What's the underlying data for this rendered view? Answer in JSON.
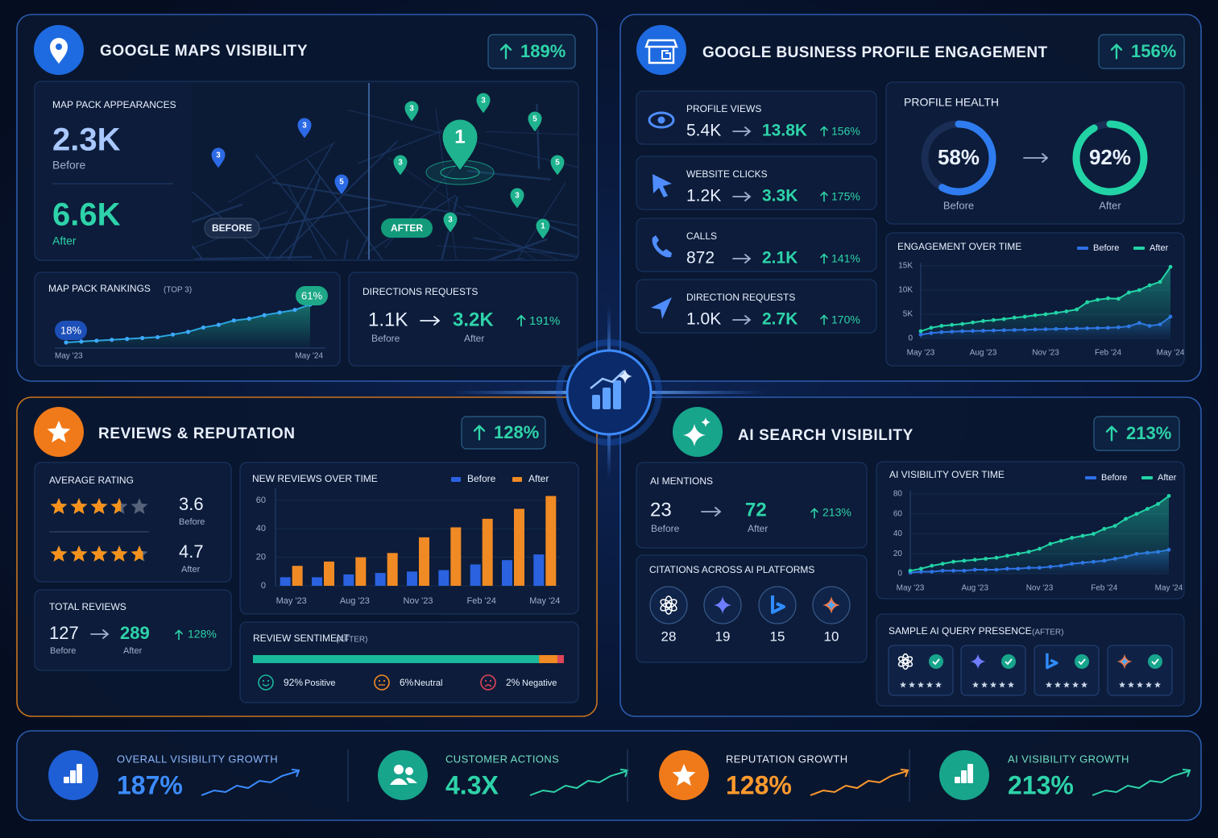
{
  "maps": {
    "title": "GOOGLE MAPS VISIBILITY",
    "growth": "189%",
    "appearances": {
      "label": "MAP PACK APPEARANCES",
      "before": "2.3K",
      "before_label": "Before",
      "after": "6.6K",
      "after_label": "After"
    },
    "map": {
      "before_tag": "BEFORE",
      "after_tag": "AFTER",
      "before_pins": [
        "3",
        "3",
        "5"
      ],
      "after_pins": [
        "3",
        "3",
        "5",
        "3",
        "5",
        "3",
        "3",
        "1"
      ],
      "top_pin": "1"
    },
    "rankings": {
      "title": "MAP PACK RANKINGS",
      "note": "(TOP 3)",
      "categories": [
        "May '23",
        null,
        null,
        null,
        null,
        null,
        null,
        null,
        null,
        null,
        null,
        null,
        null,
        null,
        null,
        null,
        "May '24"
      ],
      "values": [
        18,
        19,
        20,
        21,
        22,
        23,
        24,
        27,
        30,
        35,
        38,
        43,
        45,
        49,
        52,
        55,
        61
      ],
      "first_label": "18%",
      "last_label": "61%"
    },
    "directions": {
      "label": "DIRECTIONS REQUESTS",
      "before": "1.1K",
      "after": "3.2K",
      "growth": "191%",
      "before_label": "Before",
      "after_label": "After"
    }
  },
  "profile": {
    "title": "GOOGLE BUSINESS PROFILE ENGAGEMENT",
    "growth": "156%",
    "metrics": [
      {
        "label": "PROFILE VIEWS",
        "before": "5.4K",
        "after": "13.8K",
        "growth": "156%"
      },
      {
        "label": "WEBSITE CLICKS",
        "before": "1.2K",
        "after": "3.3K",
        "growth": "175%"
      },
      {
        "label": "CALLS",
        "before": "872",
        "after": "2.1K",
        "growth": "141%"
      },
      {
        "label": "DIRECTION REQUESTS",
        "before": "1.0K",
        "after": "2.7K",
        "growth": "170%"
      }
    ],
    "health": {
      "title": "PROFILE HEALTH",
      "before": 58,
      "before_value_label": "58%",
      "after": 92,
      "after_value_label": "92%",
      "before_label": "Before",
      "after_label": "After"
    },
    "engagement": {
      "type": "line",
      "title": "ENGAGEMENT OVER TIME",
      "grid": true,
      "categories": [
        "May '23",
        null,
        null,
        null,
        null,
        null,
        "Aug '23",
        null,
        null,
        null,
        null,
        null,
        "Nov '23",
        null,
        null,
        null,
        null,
        null,
        "Feb '24",
        null,
        null,
        null,
        null,
        null,
        "May '24"
      ],
      "series": [
        {
          "name": "Before",
          "color": "#2f6fe8",
          "values": [
            800,
            1100,
            1300,
            1400,
            1500,
            1550,
            1600,
            1650,
            1700,
            1750,
            1800,
            1850,
            1900,
            1950,
            2000,
            2050,
            2100,
            2150,
            2200,
            2300,
            2500,
            3200,
            2600,
            2900,
            4500
          ]
        },
        {
          "name": "After",
          "color": "#22d3a6",
          "values": [
            1500,
            2200,
            2600,
            2800,
            3000,
            3300,
            3600,
            3800,
            4000,
            4300,
            4500,
            4800,
            5000,
            5300,
            5600,
            6000,
            7500,
            8000,
            8300,
            8200,
            9500,
            10000,
            11000,
            11700,
            14800
          ]
        }
      ],
      "ylim": [
        0,
        15000
      ],
      "yticks": [
        0,
        {
          "value": 5000,
          "label": "5K"
        },
        {
          "value": 10000,
          "label": "10K"
        },
        {
          "value": 15000,
          "label": "15K"
        }
      ]
    }
  },
  "reviews": {
    "title": "REVIEWS & REPUTATION",
    "growth": "128%",
    "rating": {
      "label": "AVERAGE RATING",
      "before": 3.6,
      "before_label": "Before",
      "after": 4.7,
      "after_label": "After"
    },
    "total": {
      "label": "TOTAL REVIEWS",
      "before": "127",
      "after": "289",
      "growth": "128%",
      "before_label": "Before",
      "after_label": "After"
    },
    "chart": {
      "type": "bar",
      "title": "NEW REVIEWS OVER TIME",
      "grid": true,
      "categories": [
        "May '23",
        null,
        "Aug '23",
        null,
        "Nov '23",
        null,
        "Feb '24",
        null,
        "May '24"
      ],
      "series": [
        {
          "name": "Before",
          "color": "#2a62e0",
          "values": [
            6,
            6,
            8,
            9,
            10,
            11,
            15,
            18,
            22
          ]
        },
        {
          "name": "After",
          "color": "#f08a24",
          "values": [
            14,
            17,
            20,
            23,
            34,
            41,
            47,
            54,
            63
          ]
        }
      ],
      "ylim": [
        0,
        65
      ],
      "yticks": [
        0,
        20,
        40,
        60
      ]
    },
    "sentiment": {
      "title": "REVIEW SENTIMENT",
      "note": "(AFTER)",
      "items": [
        {
          "name": "Positive",
          "value": 92,
          "value_label": "92%",
          "color": "#19b79b"
        },
        {
          "name": "Neutral",
          "value": 6,
          "value_label": "6%",
          "color": "#f08a24"
        },
        {
          "name": "Negative",
          "value": 2,
          "value_label": "2%",
          "color": "#e0455a"
        }
      ]
    }
  },
  "ai": {
    "title": "AI SEARCH VISIBILITY",
    "growth": "213%",
    "mentions": {
      "label": "AI MENTIONS",
      "before": "23",
      "after": "72",
      "growth": "213%",
      "before_label": "Before",
      "after_label": "After"
    },
    "citations": {
      "title": "CITATIONS ACROSS AI PLATFORMS",
      "counts": [
        "28",
        "19",
        "15",
        "10"
      ]
    },
    "chart": {
      "type": "line",
      "title": "AI VISIBILITY OVER TIME",
      "grid": true,
      "categories": [
        "May '23",
        null,
        null,
        null,
        null,
        null,
        "Aug '23",
        null,
        null,
        null,
        null,
        null,
        "Nov '23",
        null,
        null,
        null,
        null,
        null,
        "Feb '24",
        null,
        null,
        null,
        null,
        null,
        "May '24"
      ],
      "series": [
        {
          "name": "Before",
          "color": "#2f6fe8",
          "values": [
            1,
            2,
            2,
            3,
            3,
            3,
            4,
            4,
            4,
            5,
            5,
            6,
            6,
            7,
            8,
            10,
            11,
            12,
            13,
            15,
            17,
            20,
            21,
            22,
            24
          ]
        },
        {
          "name": "After",
          "color": "#22d3a6",
          "values": [
            3,
            5,
            8,
            10,
            12,
            13,
            14,
            15,
            16,
            18,
            20,
            22,
            25,
            30,
            33,
            36,
            38,
            40,
            45,
            48,
            55,
            60,
            65,
            70,
            78
          ]
        }
      ],
      "ylim": [
        0,
        80
      ],
      "yticks": [
        0,
        20,
        40,
        60,
        80
      ]
    },
    "presence": {
      "title": "SAMPLE AI QUERY PRESENCE",
      "note": "(AFTER)"
    }
  },
  "summary": [
    {
      "label": "OVERALL VISIBILITY GROWTH",
      "value": "187%"
    },
    {
      "label": "CUSTOMER ACTIONS",
      "value": "4.3X"
    },
    {
      "label": "REPUTATION GROWTH",
      "value": "128%"
    },
    {
      "label": "AI VISIBILITY GROWTH",
      "value": "213%"
    }
  ]
}
